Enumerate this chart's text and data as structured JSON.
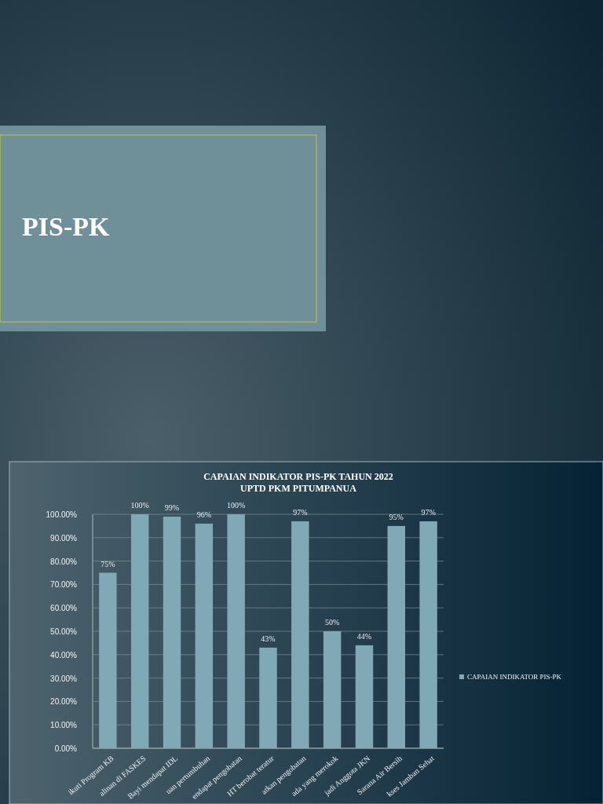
{
  "chart_data": {
    "type": "bar",
    "title": "CAPAIAN INDIKATOR PIS-PK TAHUN 2022",
    "subtitle": "UPTD PKM PITUMPANUA",
    "annotations": [
      "PIS-PK"
    ],
    "categories": [
      "ikuti Program KB",
      "alinan di FASKES",
      "Bayi mendapat IDL",
      "uan pertumbuhan",
      "endapat pengobatan",
      "HT berobat teratur",
      "atkan pengobatan",
      "ada yang merokok",
      "jadi Anggota JKN",
      "Sarana Air Bersih",
      "kses Jamban Sehat"
    ],
    "series": [
      {
        "name": "CAPAIAN INDIKATOR PIS-PK",
        "color": "#7fa9b5",
        "values": [
          75,
          100,
          99,
          96,
          100,
          43,
          97,
          50,
          44,
          95,
          97
        ],
        "value_labels": [
          "75%",
          "100%",
          "99%",
          "96%",
          "100%",
          "43%",
          "97%",
          "50%",
          "44%",
          "95%",
          "97%"
        ]
      }
    ],
    "ylim": [
      0,
      100
    ],
    "yticks": [
      {
        "value": 0,
        "label": "0.00%"
      },
      {
        "value": 10,
        "label": "10.00%"
      },
      {
        "value": 20,
        "label": "20.00%"
      },
      {
        "value": 30,
        "label": "30.00%"
      },
      {
        "value": 40,
        "label": "40.00%"
      },
      {
        "value": 50,
        "label": "50.00%"
      },
      {
        "value": 60,
        "label": "60.00%"
      },
      {
        "value": 70,
        "label": "70.00%"
      },
      {
        "value": 80,
        "label": "80.00%"
      },
      {
        "value": 90,
        "label": "90.00%"
      },
      {
        "value": 100,
        "label": "100.00%"
      }
    ],
    "grid": "y",
    "legend": "right"
  }
}
